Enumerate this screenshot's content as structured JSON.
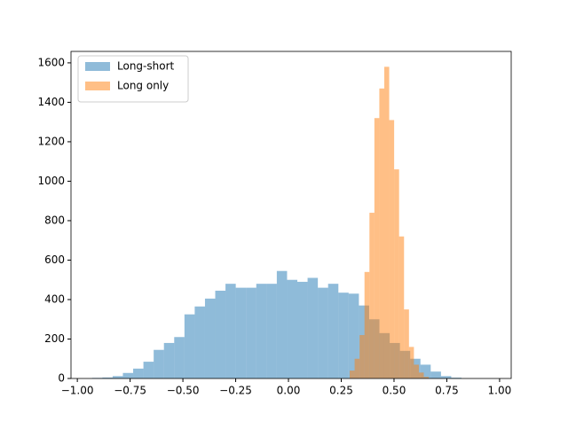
{
  "chart_data": {
    "type": "histogram",
    "series": [
      {
        "name": "Long-short",
        "color": "#1f77b4",
        "bins": [
          -0.93,
          -0.8814,
          -0.8328,
          -0.7842,
          -0.7356,
          -0.687,
          -0.6384,
          -0.5898,
          -0.5412,
          -0.4926,
          -0.444,
          -0.3954,
          -0.3468,
          -0.2982,
          -0.2496,
          -0.201,
          -0.1524,
          -0.1038,
          -0.0552,
          -0.0066,
          0.042,
          0.0906,
          0.1392,
          0.1878,
          0.2364,
          0.285,
          0.3336,
          0.3822,
          0.4308,
          0.4794,
          0.528,
          0.5766,
          0.6252,
          0.6738,
          0.7224,
          0.771,
          0.8196
        ],
        "values": [
          3,
          5,
          12,
          28,
          50,
          85,
          145,
          180,
          210,
          325,
          365,
          405,
          445,
          480,
          460,
          460,
          480,
          480,
          545,
          500,
          490,
          510,
          460,
          480,
          435,
          430,
          370,
          300,
          230,
          180,
          140,
          100,
          70,
          35,
          12,
          4
        ]
      },
      {
        "name": "Long only",
        "color": "#ff7f0e",
        "bins": [
          0.29,
          0.3134,
          0.3368,
          0.3602,
          0.3836,
          0.407,
          0.4304,
          0.4538,
          0.4772,
          0.5006,
          0.524,
          0.5474,
          0.5708,
          0.5942,
          0.6176,
          0.641,
          0.6644
        ],
        "values": [
          40,
          100,
          220,
          540,
          840,
          1320,
          1470,
          1580,
          1310,
          1060,
          720,
          350,
          160,
          70,
          30,
          8
        ]
      }
    ],
    "alpha": 0.5,
    "xlim": [
      -1.03,
      1.055
    ],
    "ylim": [
      0,
      1658
    ],
    "xticks": [
      {
        "value": -1,
        "label": "−1.00"
      },
      {
        "value": -0.75,
        "label": "−0.75"
      },
      {
        "value": -0.5,
        "label": "−0.50"
      },
      {
        "value": -0.25,
        "label": "−0.25"
      },
      {
        "value": 0,
        "label": "0.00"
      },
      {
        "value": 0.25,
        "label": "0.25"
      },
      {
        "value": 0.5,
        "label": "0.50"
      },
      {
        "value": 0.75,
        "label": "0.75"
      },
      {
        "value": 1,
        "label": "1.00"
      }
    ],
    "yticks": [
      0,
      200,
      400,
      600,
      800,
      1000,
      1200,
      1400,
      1600
    ],
    "legend": "upper left"
  }
}
